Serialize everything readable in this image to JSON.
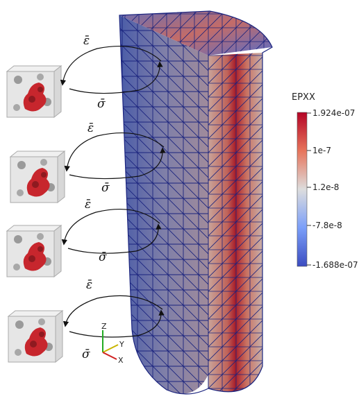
{
  "symbols": {
    "strain": "ε̄",
    "stress": "σ̄"
  },
  "colorbar": {
    "title": "EPXX",
    "ticks": [
      "1.924e-07",
      "1e-7",
      "1.2e-8",
      "-7.8e-8",
      "-1.688e-07"
    ],
    "colors": {
      "high": "#b40426",
      "mid": "#dddddd",
      "low": "#3b4cc0"
    }
  },
  "axes_triad": {
    "z": "Z",
    "y": "Y",
    "x": "X"
  },
  "mesh_edge_color": "#1a237e",
  "rve_cubes": 4
}
